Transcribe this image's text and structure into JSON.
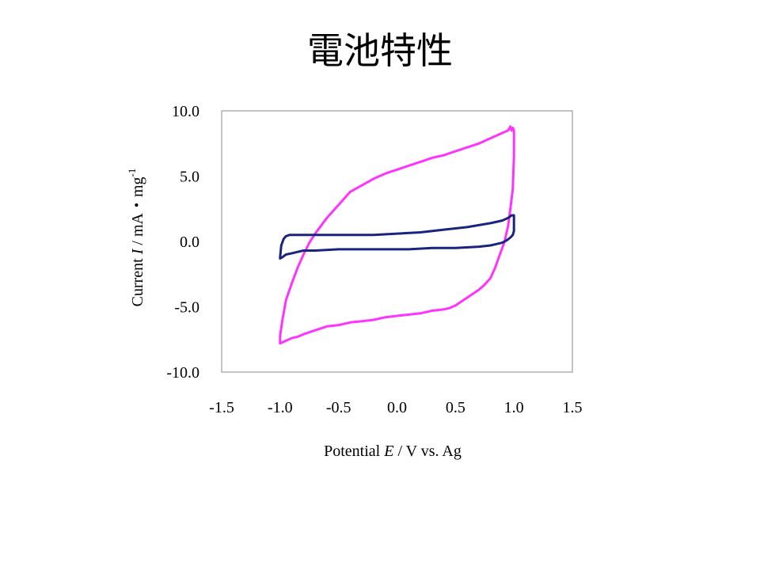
{
  "slide": {
    "title": "電池特性"
  },
  "chart_data": {
    "type": "line",
    "title": "",
    "xlabel": {
      "pre": "Potential ",
      "var": "E",
      "post": " / V vs. Ag"
    },
    "ylabel": {
      "pre": "Current ",
      "var": "I",
      "post": " / mA・mg",
      "sup": "-1"
    },
    "xlim": [
      -1.5,
      1.5
    ],
    "ylim": [
      -10,
      10
    ],
    "x_ticks": [
      "-1.5",
      "-1.0",
      "-0.5",
      "0.0",
      "0.5",
      "1.0",
      "1.5"
    ],
    "y_ticks": [
      "10.0",
      "5.0",
      "0.0",
      "-5.0",
      "-10.0"
    ],
    "grid": false,
    "legend": "none",
    "series": [
      {
        "color": "#ff33ff",
        "x": [
          -1.0,
          -1.0,
          -0.98,
          -0.95,
          -0.9,
          -0.85,
          -0.8,
          -0.75,
          -0.7,
          -0.65,
          -0.6,
          -0.5,
          -0.4,
          -0.3,
          -0.2,
          -0.1,
          0.0,
          0.1,
          0.2,
          0.3,
          0.4,
          0.5,
          0.6,
          0.7,
          0.8,
          0.9,
          0.95,
          0.97,
          0.98,
          0.99,
          1.0,
          1.0,
          0.99,
          0.97,
          0.95,
          0.92,
          0.88,
          0.84,
          0.8,
          0.75,
          0.7,
          0.65,
          0.6,
          0.55,
          0.5,
          0.45,
          0.4,
          0.3,
          0.2,
          0.1,
          0.0,
          -0.1,
          -0.2,
          -0.3,
          -0.4,
          -0.5,
          -0.6,
          -0.7,
          -0.8,
          -0.85,
          -0.9,
          -0.95,
          -1.0
        ],
        "y": [
          -7.8,
          -7.2,
          -6.0,
          -4.5,
          -3.2,
          -2.0,
          -1.0,
          -0.1,
          0.6,
          1.2,
          1.8,
          2.8,
          3.8,
          4.3,
          4.8,
          5.2,
          5.5,
          5.8,
          6.1,
          6.4,
          6.6,
          6.9,
          7.2,
          7.5,
          7.9,
          8.3,
          8.5,
          8.8,
          8.5,
          8.7,
          8.5,
          6.5,
          4.0,
          2.5,
          1.2,
          0.0,
          -1.0,
          -2.0,
          -2.8,
          -3.3,
          -3.7,
          -4.0,
          -4.3,
          -4.6,
          -4.9,
          -5.1,
          -5.2,
          -5.3,
          -5.5,
          -5.6,
          -5.7,
          -5.8,
          -6.0,
          -6.1,
          -6.2,
          -6.4,
          -6.5,
          -6.8,
          -7.1,
          -7.3,
          -7.4,
          -7.6,
          -7.8
        ]
      },
      {
        "color": "#1a237e",
        "x": [
          -1.0,
          -0.99,
          -0.97,
          -0.95,
          -0.92,
          -0.9,
          -0.8,
          -0.6,
          -0.4,
          -0.2,
          0.0,
          0.2,
          0.4,
          0.6,
          0.8,
          0.9,
          0.95,
          0.98,
          1.0,
          1.0,
          0.99,
          0.97,
          0.94,
          0.9,
          0.85,
          0.8,
          0.7,
          0.5,
          0.3,
          0.1,
          -0.1,
          -0.3,
          -0.5,
          -0.7,
          -0.8,
          -0.85,
          -0.9,
          -0.95,
          -0.98,
          -1.0
        ],
        "y": [
          -1.2,
          -0.3,
          0.2,
          0.4,
          0.5,
          0.5,
          0.5,
          0.5,
          0.5,
          0.5,
          0.6,
          0.7,
          0.9,
          1.1,
          1.4,
          1.6,
          1.8,
          2.0,
          2.0,
          0.8,
          0.5,
          0.3,
          0.1,
          -0.1,
          -0.2,
          -0.3,
          -0.4,
          -0.5,
          -0.5,
          -0.6,
          -0.6,
          -0.6,
          -0.6,
          -0.7,
          -0.7,
          -0.8,
          -0.9,
          -1.0,
          -1.2,
          -1.3
        ]
      }
    ]
  }
}
